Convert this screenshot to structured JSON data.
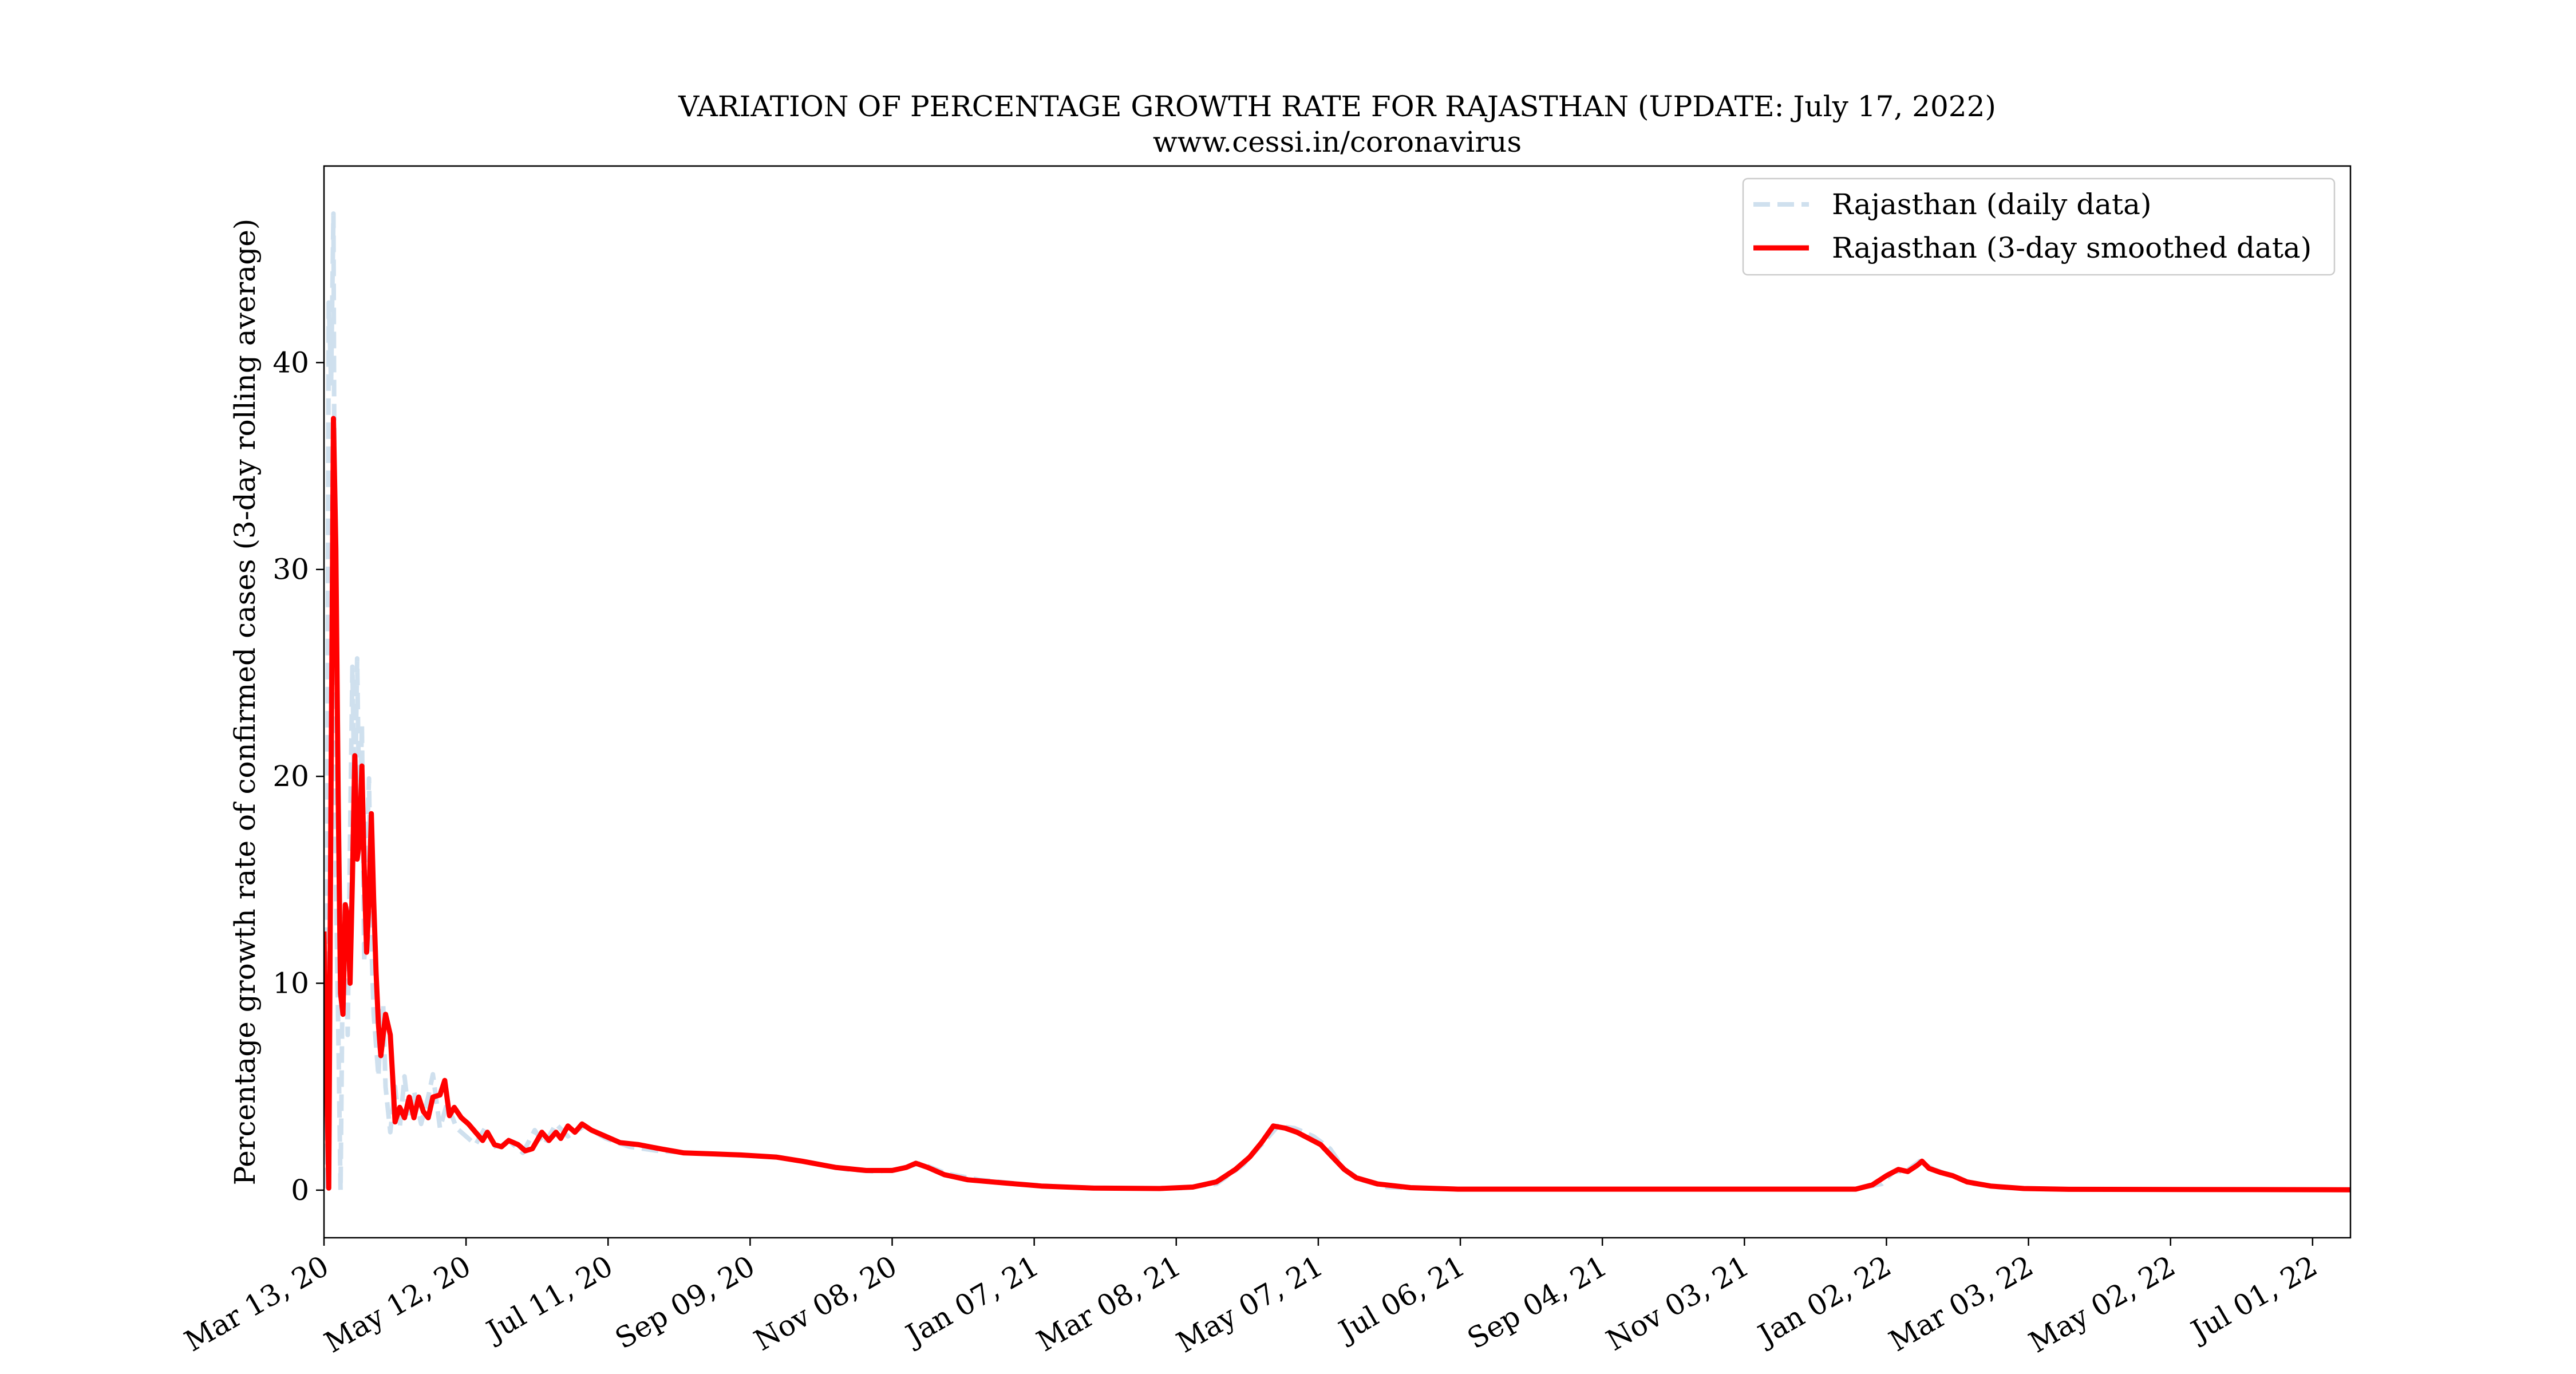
{
  "chart_data": {
    "type": "line",
    "title": "VARIATION OF PERCENTAGE GROWTH RATE FOR RAJASTHAN (UPDATE: July 17, 2022)",
    "subtitle": "www.cessi.in/coronavirus",
    "xlabel": "",
    "ylabel": "Percentage growth rate of confirmed cases (3-day rolling average)",
    "x_start": "Mar 13, 20",
    "x_end": "Jul 17, 22",
    "xlim": [
      "2020-03-13",
      "2022-07-17"
    ],
    "ylim": [
      -2.3,
      49.5
    ],
    "grid": false,
    "legend_position": "top-right",
    "x_ticks": [
      {
        "label": "Mar 13, 20",
        "date": "2020-03-13"
      },
      {
        "label": "May 12, 20",
        "date": "2020-05-12"
      },
      {
        "label": "Jul 11, 20",
        "date": "2020-07-11"
      },
      {
        "label": "Sep 09, 20",
        "date": "2020-09-09"
      },
      {
        "label": "Nov 08, 20",
        "date": "2020-11-08"
      },
      {
        "label": "Jan 07, 21",
        "date": "2021-01-07"
      },
      {
        "label": "Mar 08, 21",
        "date": "2021-03-08"
      },
      {
        "label": "May 07, 21",
        "date": "2021-05-07"
      },
      {
        "label": "Jul 06, 21",
        "date": "2021-07-06"
      },
      {
        "label": "Sep 04, 21",
        "date": "2021-09-04"
      },
      {
        "label": "Nov 03, 21",
        "date": "2021-11-03"
      },
      {
        "label": "Jan 02, 22",
        "date": "2022-01-02"
      },
      {
        "label": "Mar 03, 22",
        "date": "2022-03-03"
      },
      {
        "label": "May 02, 22",
        "date": "2022-05-02"
      },
      {
        "label": "Jul 01, 22",
        "date": "2022-07-01"
      }
    ],
    "y_ticks": [
      0,
      10,
      20,
      30,
      40
    ],
    "series": [
      {
        "name": "Rajasthan (daily data)",
        "color": "#cfe0ee",
        "style": "dashed",
        "points": [
          [
            "2020-03-13",
            12.5
          ],
          [
            "2020-03-14",
            0
          ],
          [
            "2020-03-15",
            42.9
          ],
          [
            "2020-03-16",
            39.0
          ],
          [
            "2020-03-17",
            47.2
          ],
          [
            "2020-03-18",
            15.0
          ],
          [
            "2020-03-19",
            8.0
          ],
          [
            "2020-03-20",
            0
          ],
          [
            "2020-03-21",
            12.0
          ],
          [
            "2020-03-22",
            14.0
          ],
          [
            "2020-03-23",
            7.5
          ],
          [
            "2020-03-24",
            17.0
          ],
          [
            "2020-03-25",
            25.3
          ],
          [
            "2020-03-26",
            18.0
          ],
          [
            "2020-03-27",
            25.7
          ],
          [
            "2020-03-28",
            17.5
          ],
          [
            "2020-03-29",
            22.5
          ],
          [
            "2020-03-30",
            11.0
          ],
          [
            "2020-03-31",
            16.0
          ],
          [
            "2020-04-01",
            19.9
          ],
          [
            "2020-04-02",
            12.0
          ],
          [
            "2020-04-03",
            8.5
          ],
          [
            "2020-04-04",
            7.0
          ],
          [
            "2020-04-05",
            5.5
          ],
          [
            "2020-04-06",
            8.0
          ],
          [
            "2020-04-07",
            9.0
          ],
          [
            "2020-04-08",
            5.0
          ],
          [
            "2020-04-10",
            2.8
          ],
          [
            "2020-04-12",
            5.0
          ],
          [
            "2020-04-14",
            3.0
          ],
          [
            "2020-04-16",
            5.5
          ],
          [
            "2020-04-18",
            3.5
          ],
          [
            "2020-04-20",
            4.8
          ],
          [
            "2020-04-23",
            3.2
          ],
          [
            "2020-04-26",
            4.5
          ],
          [
            "2020-04-28",
            5.6
          ],
          [
            "2020-05-01",
            3.0
          ],
          [
            "2020-05-04",
            4.2
          ],
          [
            "2020-05-08",
            3.0
          ],
          [
            "2020-05-12",
            2.6
          ],
          [
            "2020-05-16",
            2.2
          ],
          [
            "2020-05-20",
            3.0
          ],
          [
            "2020-05-25",
            2.0
          ],
          [
            "2020-05-30",
            2.4
          ],
          [
            "2020-06-05",
            1.8
          ],
          [
            "2020-06-10",
            2.9
          ],
          [
            "2020-06-14",
            2.2
          ],
          [
            "2020-06-19",
            3.2
          ],
          [
            "2020-06-24",
            2.6
          ],
          [
            "2020-07-01",
            3.1
          ],
          [
            "2020-07-10",
            2.5
          ],
          [
            "2020-07-20",
            2.1
          ],
          [
            "2020-08-01",
            1.9
          ],
          [
            "2020-08-15",
            1.8
          ],
          [
            "2020-09-01",
            1.7
          ],
          [
            "2020-09-20",
            1.6
          ],
          [
            "2020-10-05",
            1.3
          ],
          [
            "2020-10-20",
            1.0
          ],
          [
            "2020-11-01",
            0.9
          ],
          [
            "2020-11-10",
            1.0
          ],
          [
            "2020-11-20",
            1.3
          ],
          [
            "2020-12-01",
            0.8
          ],
          [
            "2020-12-15",
            0.5
          ],
          [
            "2021-01-01",
            0.3
          ],
          [
            "2021-01-20",
            0.15
          ],
          [
            "2021-02-15",
            0.08
          ],
          [
            "2021-03-10",
            0.1
          ],
          [
            "2021-03-25",
            0.3
          ],
          [
            "2021-04-05",
            1.2
          ],
          [
            "2021-04-13",
            2.2
          ],
          [
            "2021-04-20",
            3.1
          ],
          [
            "2021-04-27",
            3.0
          ],
          [
            "2021-05-05",
            2.6
          ],
          [
            "2021-05-12",
            2.0
          ],
          [
            "2021-05-18",
            1.0
          ],
          [
            "2021-05-25",
            0.5
          ],
          [
            "2021-06-05",
            0.15
          ],
          [
            "2021-07-01",
            0.05
          ],
          [
            "2021-12-20",
            0.05
          ],
          [
            "2021-12-31",
            0.3
          ],
          [
            "2022-01-05",
            0.9
          ],
          [
            "2022-01-10",
            0.9
          ],
          [
            "2022-01-16",
            1.4
          ],
          [
            "2022-01-22",
            1.0
          ],
          [
            "2022-01-30",
            0.7
          ],
          [
            "2022-02-08",
            0.3
          ],
          [
            "2022-02-20",
            0.12
          ],
          [
            "2022-03-10",
            0.05
          ],
          [
            "2022-07-17",
            0.02
          ]
        ]
      },
      {
        "name": "Rajasthan (3-day smoothed data)",
        "color": "#ff0000",
        "style": "solid",
        "points": [
          [
            "2020-03-13",
            12.5
          ],
          [
            "2020-03-15",
            0.1
          ],
          [
            "2020-03-16",
            20.0
          ],
          [
            "2020-03-17",
            37.3
          ],
          [
            "2020-03-18",
            31.0
          ],
          [
            "2020-03-19",
            19.0
          ],
          [
            "2020-03-20",
            9.5
          ],
          [
            "2020-03-21",
            8.5
          ],
          [
            "2020-03-22",
            13.8
          ],
          [
            "2020-03-23",
            13.2
          ],
          [
            "2020-03-24",
            10.0
          ],
          [
            "2020-03-25",
            15.0
          ],
          [
            "2020-03-26",
            21.0
          ],
          [
            "2020-03-27",
            16.0
          ],
          [
            "2020-03-28",
            16.8
          ],
          [
            "2020-03-29",
            20.5
          ],
          [
            "2020-03-30",
            15.5
          ],
          [
            "2020-03-31",
            11.5
          ],
          [
            "2020-04-01",
            14.0
          ],
          [
            "2020-04-02",
            18.2
          ],
          [
            "2020-04-03",
            14.0
          ],
          [
            "2020-04-04",
            10.5
          ],
          [
            "2020-04-05",
            8.0
          ],
          [
            "2020-04-06",
            6.5
          ],
          [
            "2020-04-07",
            7.5
          ],
          [
            "2020-04-08",
            8.5
          ],
          [
            "2020-04-09",
            8.0
          ],
          [
            "2020-04-10",
            7.5
          ],
          [
            "2020-04-11",
            5.5
          ],
          [
            "2020-04-12",
            3.3
          ],
          [
            "2020-04-14",
            4.0
          ],
          [
            "2020-04-16",
            3.5
          ],
          [
            "2020-04-18",
            4.5
          ],
          [
            "2020-04-20",
            3.5
          ],
          [
            "2020-04-22",
            4.5
          ],
          [
            "2020-04-24",
            3.8
          ],
          [
            "2020-04-26",
            3.5
          ],
          [
            "2020-04-28",
            4.5
          ],
          [
            "2020-05-01",
            4.6
          ],
          [
            "2020-05-03",
            5.3
          ],
          [
            "2020-05-05",
            3.6
          ],
          [
            "2020-05-07",
            4.0
          ],
          [
            "2020-05-10",
            3.5
          ],
          [
            "2020-05-13",
            3.2
          ],
          [
            "2020-05-16",
            2.8
          ],
          [
            "2020-05-19",
            2.4
          ],
          [
            "2020-05-21",
            2.8
          ],
          [
            "2020-05-24",
            2.2
          ],
          [
            "2020-05-27",
            2.1
          ],
          [
            "2020-05-30",
            2.4
          ],
          [
            "2020-06-03",
            2.2
          ],
          [
            "2020-06-06",
            1.9
          ],
          [
            "2020-06-09",
            2.0
          ],
          [
            "2020-06-13",
            2.8
          ],
          [
            "2020-06-16",
            2.4
          ],
          [
            "2020-06-19",
            2.8
          ],
          [
            "2020-06-21",
            2.5
          ],
          [
            "2020-06-24",
            3.1
          ],
          [
            "2020-06-27",
            2.8
          ],
          [
            "2020-06-30",
            3.2
          ],
          [
            "2020-07-04",
            2.9
          ],
          [
            "2020-07-10",
            2.6
          ],
          [
            "2020-07-16",
            2.3
          ],
          [
            "2020-07-24",
            2.2
          ],
          [
            "2020-08-02",
            2.0
          ],
          [
            "2020-08-12",
            1.8
          ],
          [
            "2020-08-25",
            1.75
          ],
          [
            "2020-09-05",
            1.7
          ],
          [
            "2020-09-20",
            1.6
          ],
          [
            "2020-10-01",
            1.4
          ],
          [
            "2020-10-15",
            1.1
          ],
          [
            "2020-10-28",
            0.95
          ],
          [
            "2020-11-08",
            0.95
          ],
          [
            "2020-11-14",
            1.1
          ],
          [
            "2020-11-18",
            1.3
          ],
          [
            "2020-11-23",
            1.1
          ],
          [
            "2020-11-30",
            0.75
          ],
          [
            "2020-12-10",
            0.5
          ],
          [
            "2020-12-25",
            0.35
          ],
          [
            "2021-01-10",
            0.2
          ],
          [
            "2021-02-01",
            0.1
          ],
          [
            "2021-03-01",
            0.08
          ],
          [
            "2021-03-15",
            0.15
          ],
          [
            "2021-03-25",
            0.4
          ],
          [
            "2021-04-02",
            1.0
          ],
          [
            "2021-04-08",
            1.6
          ],
          [
            "2021-04-13",
            2.3
          ],
          [
            "2021-04-18",
            3.1
          ],
          [
            "2021-04-23",
            3.0
          ],
          [
            "2021-04-28",
            2.8
          ],
          [
            "2021-05-03",
            2.5
          ],
          [
            "2021-05-08",
            2.2
          ],
          [
            "2021-05-13",
            1.6
          ],
          [
            "2021-05-18",
            1.0
          ],
          [
            "2021-05-23",
            0.6
          ],
          [
            "2021-06-01",
            0.3
          ],
          [
            "2021-06-15",
            0.12
          ],
          [
            "2021-07-05",
            0.05
          ],
          [
            "2021-12-20",
            0.05
          ],
          [
            "2021-12-27",
            0.25
          ],
          [
            "2022-01-02",
            0.7
          ],
          [
            "2022-01-07",
            1.0
          ],
          [
            "2022-01-11",
            0.9
          ],
          [
            "2022-01-15",
            1.2
          ],
          [
            "2022-01-17",
            1.4
          ],
          [
            "2022-01-20",
            1.05
          ],
          [
            "2022-01-25",
            0.85
          ],
          [
            "2022-01-30",
            0.7
          ],
          [
            "2022-02-05",
            0.4
          ],
          [
            "2022-02-15",
            0.2
          ],
          [
            "2022-03-01",
            0.08
          ],
          [
            "2022-03-20",
            0.04
          ],
          [
            "2022-07-17",
            0.02
          ]
        ]
      }
    ]
  }
}
